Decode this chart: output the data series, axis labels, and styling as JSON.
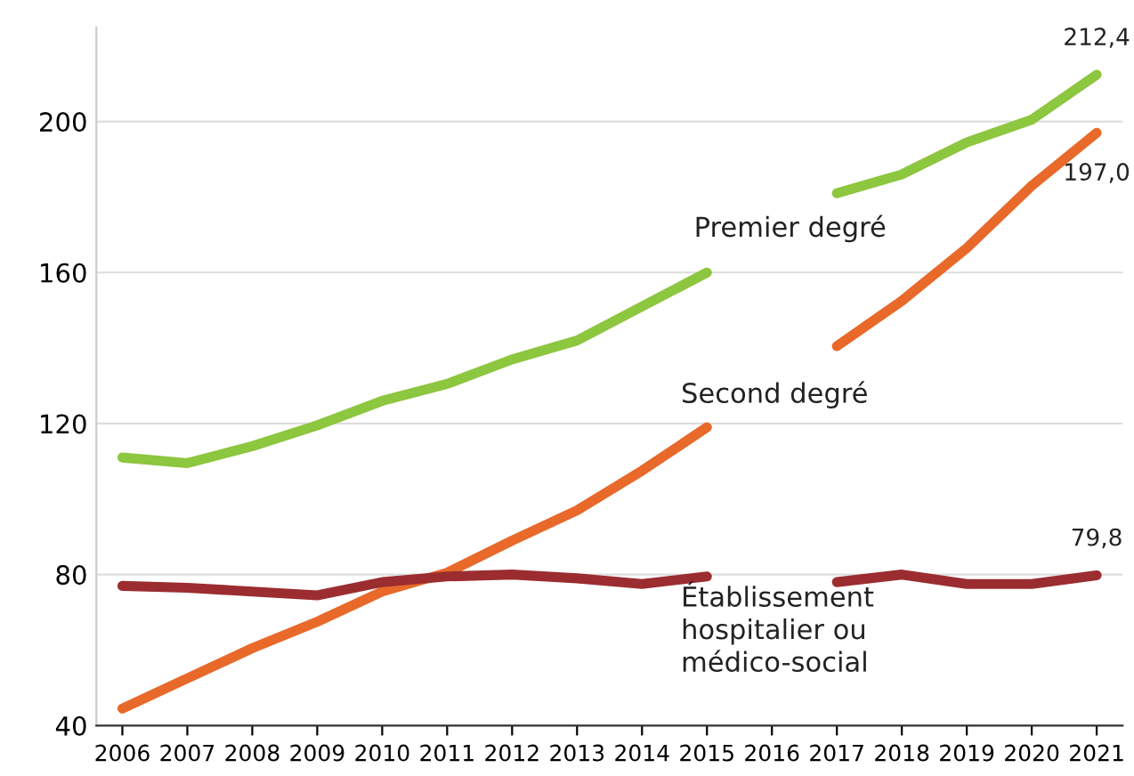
{
  "chart_data": {
    "type": "line",
    "categories": [
      "2006",
      "2007",
      "2008",
      "2009",
      "2010",
      "2011",
      "2012",
      "2013",
      "2014",
      "2015",
      "2016",
      "2017",
      "2018",
      "2019",
      "2020",
      "2021"
    ],
    "series": [
      {
        "name": "Premier degré",
        "color": "#8dc63f",
        "values": [
          111,
          109.5,
          114,
          119.5,
          126,
          130.5,
          137,
          142,
          151,
          160,
          null,
          181,
          186,
          194.5,
          200.5,
          212.4
        ],
        "value_labels": [
          null,
          null,
          null,
          null,
          null,
          null,
          null,
          null,
          null,
          null,
          null,
          null,
          null,
          null,
          null,
          "212,4"
        ]
      },
      {
        "name": "Second degré",
        "color": "#e8692a",
        "values": [
          44.5,
          52.5,
          60.5,
          67.5,
          75.5,
          80.5,
          89,
          97,
          107.5,
          119,
          null,
          140.5,
          152.5,
          166.5,
          183,
          197.0
        ],
        "value_labels": [
          null,
          null,
          null,
          null,
          null,
          null,
          null,
          null,
          null,
          null,
          null,
          null,
          null,
          null,
          null,
          "197,0"
        ]
      },
      {
        "name": "Établissement\nhospitalier ou\nmédico-social",
        "color": "#9b2d30",
        "values": [
          77,
          76.5,
          75.5,
          74.5,
          78,
          79.5,
          80,
          79,
          77.5,
          79.5,
          null,
          78,
          80,
          77.5,
          77.5,
          79.8
        ],
        "value_labels": [
          null,
          null,
          null,
          null,
          null,
          null,
          null,
          null,
          null,
          null,
          null,
          null,
          null,
          null,
          null,
          "79,8"
        ]
      }
    ],
    "ylim": [
      40,
      225
    ],
    "yticks": [
      40,
      80,
      120,
      160,
      200
    ],
    "grid": "y",
    "legend": false,
    "marker": "none",
    "line_style": "solid"
  }
}
